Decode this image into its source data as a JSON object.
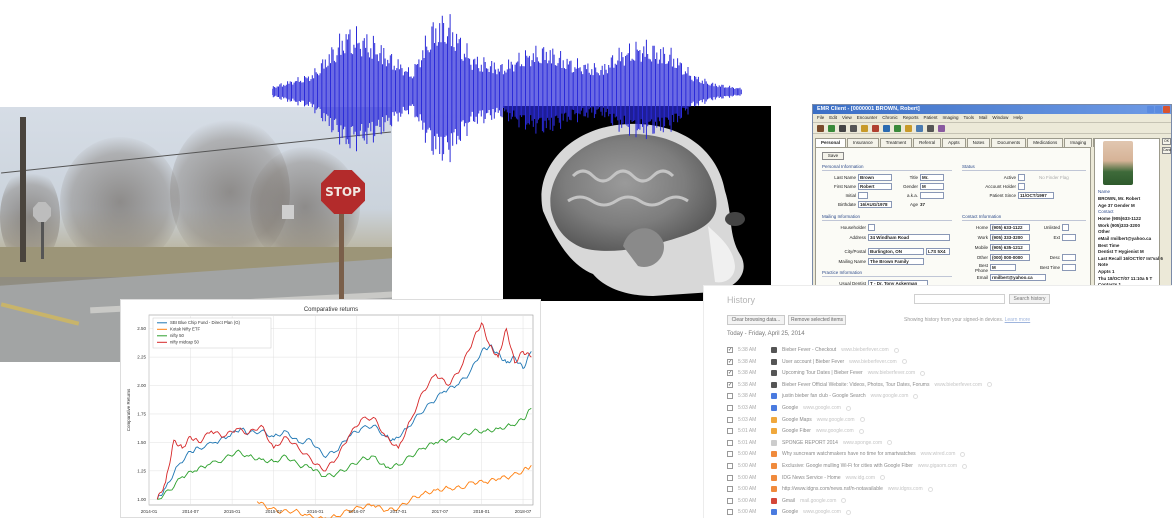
{
  "street": {
    "stop_sign_text": "STOP"
  },
  "chart": {
    "title": "Comparative returns",
    "ylabel": "Comparative Returns",
    "legend": [
      "SBI Blue Chip Fund - Direct Plan (G)",
      "Kotak Nifty ETF",
      "nifty 50",
      "nifty midcap 50"
    ],
    "colors": [
      "#1f77b4",
      "#ff7f0e",
      "#2ca02c",
      "#d62728"
    ]
  },
  "chart_data": {
    "type": "line",
    "title": "Comparative returns",
    "xlabel": "",
    "ylabel": "Comparative Returns",
    "x_ticks": [
      "2014-01",
      "2014-07",
      "2015-01",
      "2015-07",
      "2016-01",
      "2016-07",
      "2017-01",
      "2017-07",
      "2018-01",
      "2018-07"
    ],
    "y_ticks": [
      "1.00",
      "1.25",
      "1.50",
      "1.75",
      "2.00",
      "2.25",
      "2.50"
    ],
    "ylim": [
      0.95,
      2.62
    ],
    "x_range": [
      2014.0,
      2018.62
    ],
    "legend_position": "top-left",
    "grid": true,
    "series": [
      {
        "name": "SBI Blue Chip Fund - Direct Plan (G)",
        "color": "#1f77b4",
        "x": [
          2014.1,
          2014.2,
          2014.35,
          2014.5,
          2014.6,
          2014.8,
          2014.95,
          2015.1,
          2015.2,
          2015.35,
          2015.5,
          2015.65,
          2015.8,
          2015.95,
          2016.1,
          2016.25,
          2016.4,
          2016.55,
          2016.7,
          2016.85,
          2016.95,
          2017.1,
          2017.25,
          2017.4,
          2017.55,
          2017.7,
          2017.85,
          2018.0,
          2018.1,
          2018.2,
          2018.3,
          2018.4,
          2018.5,
          2018.6
        ],
        "y": [
          1.0,
          1.1,
          1.3,
          1.42,
          1.45,
          1.5,
          1.55,
          1.62,
          1.58,
          1.6,
          1.55,
          1.6,
          1.5,
          1.52,
          1.38,
          1.42,
          1.55,
          1.62,
          1.65,
          1.55,
          1.52,
          1.62,
          1.75,
          1.85,
          1.95,
          2.0,
          2.1,
          2.3,
          2.35,
          2.28,
          2.2,
          2.25,
          2.15,
          2.3
        ]
      },
      {
        "name": "Kotak Nifty ETF",
        "color": "#ff7f0e",
        "x": [
          2015.3,
          2015.45,
          2015.6,
          2015.75,
          2015.9,
          2016.1,
          2016.25,
          2016.4,
          2016.55,
          2016.7,
          2016.85,
          2017.0,
          2017.15,
          2017.3,
          2017.45,
          2017.6,
          2017.75,
          2017.9,
          2018.05,
          2018.2,
          2018.35,
          2018.5,
          2018.6
        ],
        "y": [
          0.98,
          0.92,
          0.89,
          0.9,
          0.86,
          0.83,
          0.85,
          0.9,
          0.93,
          0.95,
          0.9,
          0.92,
          1.0,
          1.05,
          1.08,
          1.1,
          1.1,
          1.15,
          1.15,
          1.18,
          1.2,
          1.25,
          1.3
        ]
      },
      {
        "name": "nifty 50",
        "color": "#2ca02c",
        "x": [
          2014.1,
          2014.25,
          2014.4,
          2014.55,
          2014.7,
          2014.9,
          2015.05,
          2015.2,
          2015.35,
          2015.5,
          2015.65,
          2015.8,
          2015.95,
          2016.1,
          2016.25,
          2016.4,
          2016.55,
          2016.7,
          2016.85,
          2017.0,
          2017.15,
          2017.3,
          2017.45,
          2017.6,
          2017.75,
          2017.9,
          2018.05,
          2018.2,
          2018.35,
          2018.5,
          2018.6
        ],
        "y": [
          1.0,
          1.08,
          1.2,
          1.25,
          1.3,
          1.35,
          1.42,
          1.38,
          1.35,
          1.33,
          1.38,
          1.3,
          1.28,
          1.2,
          1.22,
          1.28,
          1.35,
          1.38,
          1.28,
          1.3,
          1.38,
          1.45,
          1.5,
          1.52,
          1.55,
          1.6,
          1.6,
          1.62,
          1.65,
          1.7,
          1.8
        ]
      },
      {
        "name": "nifty midcap 50",
        "color": "#d62728",
        "x": [
          2014.1,
          2014.2,
          2014.3,
          2014.4,
          2014.5,
          2014.6,
          2014.75,
          2014.9,
          2015.05,
          2015.2,
          2015.35,
          2015.5,
          2015.65,
          2015.8,
          2015.95,
          2016.1,
          2016.25,
          2016.4,
          2016.55,
          2016.7,
          2016.85,
          2017.0,
          2017.15,
          2017.3,
          2017.45,
          2017.6,
          2017.75,
          2017.9,
          2018.0,
          2018.1,
          2018.2,
          2018.3,
          2018.4,
          2018.5,
          2018.6
        ],
        "y": [
          1.0,
          1.15,
          1.52,
          1.45,
          1.55,
          1.5,
          1.6,
          1.55,
          1.62,
          1.58,
          1.65,
          1.45,
          1.55,
          1.45,
          1.35,
          1.25,
          1.35,
          1.55,
          1.7,
          1.72,
          1.55,
          1.45,
          1.7,
          1.95,
          2.1,
          2.0,
          2.15,
          2.4,
          2.55,
          2.35,
          2.25,
          2.5,
          2.2,
          2.3,
          2.25
        ]
      }
    ]
  },
  "emr": {
    "title": "EMR Client - [0000001 BROWN, Robert]",
    "menu": [
      "File",
      "Edit",
      "View",
      "Encounter",
      "Chronic",
      "Reports",
      "Patient",
      "Imaging",
      "Tools",
      "Mail",
      "Window",
      "Help"
    ],
    "tabs": [
      "Personal",
      "Insurance",
      "Treatment",
      "Referral",
      "Appts",
      "Notes",
      "Documents",
      "Medications",
      "Imaging",
      "Chart",
      "Fees"
    ],
    "save_label": "Save",
    "groups": {
      "personal": "Personal Information",
      "status": "Status",
      "mailing": "Mailing Information",
      "contact": "Contact Information",
      "practice": "Practice Information",
      "notes": "Notes and Flags"
    },
    "fields": {
      "last_name_label": "Last Name",
      "last_name": "Brown",
      "first_name_label": "First Name",
      "first_name": "Robert",
      "initial_label": "Initial",
      "birthdate_label": "Birthdate",
      "birthdate": "16/AUG/1978",
      "title_label": "Title",
      "title": "Mr.",
      "gender_label": "Gender",
      "gender": "M",
      "aka_label": "a.k.a.",
      "age_label": "Age",
      "age": "37",
      "active_label": "Active",
      "account_holder_label": "Account Holder",
      "patient_since_label": "Patient Since",
      "patient_since": "11/OCT/1997",
      "no_finder_label": "No Finder Flag",
      "householder_label": "Householder",
      "address_label": "Address",
      "address": "34 Windham Road",
      "city_label": "City/Postal",
      "city": "Burlington, ON",
      "postal": "L7S 5X4",
      "mailing_name_label": "Mailing Name",
      "mailing_name": "The Brown Family",
      "home_label": "Home",
      "home": "(905) 633-1122",
      "work_label": "Work",
      "work": "(905) 333-3200",
      "mobile_label": "Mobile",
      "mobile": "(905) 635-1212",
      "other_label": "Other",
      "other": "(000) 000-0000",
      "best_phone_label": "Best Phone",
      "best_phone": "M",
      "email_label": "Email",
      "email": "rmilbert@yahoo.ca",
      "unlisted_label": "Unlisted",
      "ext_label": "Ext",
      "desc_label": "Desc",
      "best_time_label": "Best Time",
      "usual_dentist_label": "Usual Dentist",
      "usual_dentist": "T - Dr. Tony Ackerman",
      "medical_cond_label": "Medical Cond",
      "premedicate_label": "Premedicate"
    },
    "side": [
      "Name",
      "BROWN, Mr. Robert",
      "Age  37     Gender  M",
      "Contact",
      "Home  (905)633-1122",
      "Work  (905)333-3200",
      "Other",
      "eMail  rmilbert@yahoo.ca",
      "Best Time",
      "Dentist  T     Hygienist  M",
      "Last Recall  16/OCT/07  Int'val  6",
      "Note",
      "Appts  1",
      "Thu 18/OCT/07 11:10a  5 T",
      "Contacts  1",
      "Thu 17/APR/08  3 M cc",
      "Financial",
      "Current   833.97   1161.35",
      "30-59   0.00   0.00",
      "60-89   0.00   0.00",
      "90+   341.15   0.00",
      "Total   1175.12   1161.35",
      "1 Prepaid   1000.00",
      "Notes        Prev 12 Months",
      "Medical      0  Late",
      "Financial    0  Cancelled",
      "General      0  Missed"
    ],
    "right_buttons": [
      "OK",
      "Cancel"
    ],
    "status_text": "NUM          Version 11:28 AM"
  },
  "history": {
    "title": "History",
    "search_button": "Search history",
    "clear_button": "Clear browsing data...",
    "remove_button": "Remove selected items",
    "note": "Showing history from your signed-in devices.",
    "learn_more": "Learn more",
    "date_heading": "Today - Friday, April 25, 2014",
    "rows": [
      {
        "checked": true,
        "time": "5:38 AM",
        "title": "Bieber Fever - Checkout",
        "domain": "www.bieberfever.com",
        "icon_color": "#555555"
      },
      {
        "checked": true,
        "time": "5:38 AM",
        "title": "User account | Bieber Fever",
        "domain": "www.bieberfever.com",
        "icon_color": "#555555"
      },
      {
        "checked": true,
        "time": "5:38 AM",
        "title": "Upcoming Tour Dates | Bieber Fever",
        "domain": "www.bieberfever.com",
        "icon_color": "#555555"
      },
      {
        "checked": true,
        "time": "5:38 AM",
        "title": "Bieber Fever Official Website: Videos, Photos, Tour Dates, Forums",
        "domain": "www.bieberfever.com",
        "icon_color": "#555555"
      },
      {
        "checked": false,
        "time": "5:38 AM",
        "title": "justin bieber fan club - Google Search",
        "domain": "www.google.com",
        "icon_color": "#4a7be0"
      },
      {
        "checked": false,
        "time": "5:03 AM",
        "title": "Google",
        "domain": "www.google.com",
        "icon_color": "#4a7be0"
      },
      {
        "checked": false,
        "time": "5:03 AM",
        "title": "Google Maps",
        "domain": "www.google.com",
        "icon_color": "#f0a83c"
      },
      {
        "checked": false,
        "time": "5:01 AM",
        "title": "Google Fiber",
        "domain": "www.google.com",
        "icon_color": "#f0a83c"
      },
      {
        "checked": false,
        "time": "5:01 AM",
        "title": "SPONGE REPORT 2014",
        "domain": "www.sponge.com",
        "icon_color": "#cccccc"
      },
      {
        "checked": false,
        "time": "5:00 AM",
        "title": "Why suncream watchmakers have no time for smartwatches",
        "domain": "www.wired.com",
        "icon_color": "#f08a3c"
      },
      {
        "checked": false,
        "time": "5:00 AM",
        "title": "Exclusive: Google mulling Wi-Fi for cities with Google Fiber",
        "domain": "www.gigaom.com",
        "icon_color": "#f08a3c"
      },
      {
        "checked": false,
        "time": "5:00 AM",
        "title": "IDG News Service - Home",
        "domain": "www.idg.com",
        "icon_color": "#f08a3c"
      },
      {
        "checked": false,
        "time": "5:00 AM",
        "title": "http://www.idgns.com/news.nsf/n-notavailable",
        "domain": "www.idgns.com",
        "icon_color": "#f08a3c"
      },
      {
        "checked": false,
        "time": "5:00 AM",
        "title": "Gmail",
        "domain": "mail.google.com",
        "icon_color": "#d44638"
      },
      {
        "checked": false,
        "time": "5:00 AM",
        "title": "Google",
        "domain": "www.google.com",
        "icon_color": "#4a7be0"
      }
    ]
  }
}
